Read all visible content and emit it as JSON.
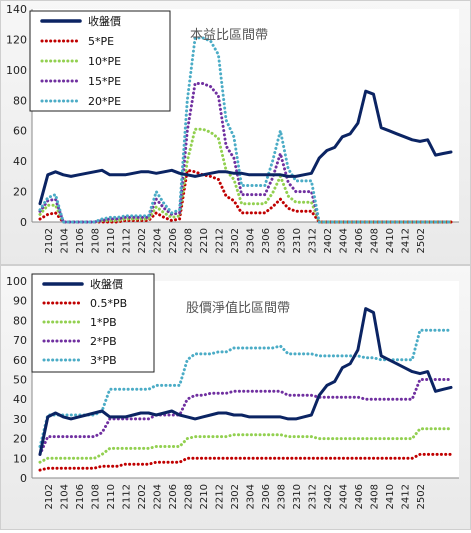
{
  "chart_data": [
    {
      "type": "line",
      "title": "本益比區間帶",
      "ylim": [
        0,
        140
      ],
      "yticks": [
        0,
        20,
        40,
        60,
        80,
        100,
        120,
        140
      ],
      "grid": false,
      "legend": "top-left",
      "x_ticks": [
        "2102",
        "2104",
        "2106",
        "2108",
        "2110",
        "2112",
        "2202",
        "2204",
        "2206",
        "2208",
        "2210",
        "2212",
        "2302",
        "2304",
        "2306",
        "2308",
        "2310",
        "2312",
        "2402",
        "2404",
        "2406",
        "2408",
        "2410",
        "2412",
        "2502"
      ],
      "series": [
        {
          "name": "收盤價",
          "color": "#0b2463",
          "style": "solid",
          "values": [
            12,
            31,
            33,
            31,
            30,
            31,
            32,
            33,
            34,
            31,
            31,
            31,
            32,
            33,
            33,
            32,
            33,
            34,
            32,
            31,
            30,
            31,
            32,
            33,
            33,
            32,
            32,
            31,
            31,
            31,
            31,
            31,
            30,
            30,
            31,
            32,
            42,
            47,
            49,
            56,
            58,
            65,
            86,
            84,
            62,
            60,
            58,
            56,
            54,
            53,
            54,
            44,
            45,
            46
          ]
        },
        {
          "name": "5*PE",
          "color": "#c00000",
          "style": "dot",
          "values": [
            2,
            5,
            6,
            0,
            0,
            0,
            0,
            0,
            0,
            0,
            0,
            1,
            1,
            1,
            1,
            6,
            3,
            1,
            2,
            34,
            33,
            31,
            30,
            28,
            17,
            14,
            6,
            6,
            6,
            6,
            10,
            15,
            9,
            7,
            7,
            7,
            0,
            0,
            0,
            0,
            0,
            0,
            0,
            0,
            0,
            0,
            0,
            0,
            0,
            0,
            0,
            0,
            0,
            0
          ]
        },
        {
          "name": "10*PE",
          "color": "#92d050",
          "style": "dot",
          "values": [
            5,
            11,
            11,
            0,
            0,
            0,
            0,
            0,
            1,
            1,
            1,
            2,
            2,
            2,
            2,
            10,
            6,
            3,
            4,
            40,
            61,
            61,
            59,
            55,
            34,
            28,
            12,
            12,
            12,
            12,
            19,
            30,
            17,
            13,
            13,
            13,
            0,
            0,
            0,
            0,
            0,
            0,
            0,
            0,
            0,
            0,
            0,
            0,
            0,
            0,
            0,
            0,
            0,
            0
          ]
        },
        {
          "name": "15*PE",
          "color": "#7030a0",
          "style": "dot",
          "values": [
            7,
            14,
            15,
            0,
            0,
            0,
            0,
            0,
            1,
            2,
            2,
            3,
            3,
            3,
            3,
            15,
            9,
            5,
            6,
            60,
            91,
            91,
            89,
            83,
            50,
            42,
            18,
            18,
            18,
            18,
            29,
            45,
            26,
            20,
            20,
            20,
            0,
            0,
            0,
            0,
            0,
            0,
            0,
            0,
            0,
            0,
            0,
            0,
            0,
            0,
            0,
            0,
            0,
            0
          ]
        },
        {
          "name": "20*PE",
          "color": "#4bacc6",
          "style": "dot",
          "values": [
            8,
            16,
            18,
            0,
            0,
            0,
            0,
            0,
            2,
            3,
            3,
            4,
            4,
            4,
            4,
            20,
            12,
            6,
            8,
            80,
            121,
            121,
            119,
            110,
            67,
            56,
            24,
            24,
            24,
            24,
            40,
            60,
            35,
            27,
            27,
            27,
            0,
            0,
            0,
            0,
            0,
            0,
            0,
            0,
            0,
            0,
            0,
            0,
            0,
            0,
            0,
            0,
            0,
            0
          ]
        }
      ]
    },
    {
      "type": "line",
      "title": "股價淨值比區間帶",
      "ylim": [
        0,
        100
      ],
      "yticks": [
        0,
        10,
        20,
        30,
        40,
        50,
        60,
        70,
        80,
        90,
        100
      ],
      "grid": false,
      "legend": "top-left",
      "x_ticks": [
        "2102",
        "2104",
        "2106",
        "2108",
        "2110",
        "2112",
        "2202",
        "2204",
        "2206",
        "2208",
        "2210",
        "2212",
        "2302",
        "2304",
        "2306",
        "2308",
        "2310",
        "2312",
        "2402",
        "2404",
        "2406",
        "2408",
        "2410",
        "2412",
        "2502"
      ],
      "series": [
        {
          "name": "收盤價",
          "color": "#0b2463",
          "style": "solid",
          "values": [
            12,
            31,
            33,
            31,
            30,
            31,
            32,
            33,
            34,
            31,
            31,
            31,
            32,
            33,
            33,
            32,
            33,
            34,
            32,
            31,
            30,
            31,
            32,
            33,
            33,
            32,
            32,
            31,
            31,
            31,
            31,
            31,
            30,
            30,
            31,
            32,
            42,
            47,
            49,
            56,
            58,
            65,
            86,
            84,
            62,
            60,
            58,
            56,
            54,
            53,
            54,
            44,
            45,
            46
          ]
        },
        {
          "name": "0.5*PB",
          "color": "#c00000",
          "style": "dot",
          "values": [
            4,
            5,
            5,
            5,
            5,
            5,
            5,
            5,
            6,
            6,
            6,
            7,
            7,
            7,
            7,
            8,
            8,
            8,
            8,
            10,
            10,
            10,
            10,
            10,
            10,
            10,
            10,
            10,
            10,
            10,
            10,
            10,
            10,
            10,
            10,
            10,
            10,
            10,
            10,
            10,
            10,
            10,
            10,
            10,
            10,
            10,
            10,
            10,
            10,
            12,
            12,
            12,
            12,
            12
          ]
        },
        {
          "name": "1*PB",
          "color": "#92d050",
          "style": "dot",
          "values": [
            8,
            10,
            10,
            10,
            10,
            10,
            10,
            10,
            12,
            15,
            15,
            15,
            15,
            15,
            15,
            16,
            16,
            16,
            16,
            20,
            21,
            21,
            21,
            21,
            21,
            22,
            22,
            22,
            22,
            22,
            22,
            22,
            21,
            21,
            21,
            21,
            20,
            20,
            20,
            20,
            20,
            20,
            20,
            20,
            20,
            20,
            20,
            20,
            20,
            25,
            25,
            25,
            25,
            25
          ]
        },
        {
          "name": "2*PB",
          "color": "#7030a0",
          "style": "dot",
          "values": [
            12,
            21,
            21,
            21,
            21,
            21,
            21,
            21,
            23,
            30,
            30,
            30,
            30,
            30,
            30,
            32,
            32,
            32,
            32,
            40,
            42,
            42,
            43,
            43,
            43,
            44,
            44,
            44,
            44,
            44,
            44,
            44,
            42,
            42,
            42,
            42,
            41,
            41,
            41,
            41,
            41,
            41,
            40,
            40,
            40,
            40,
            40,
            40,
            40,
            50,
            50,
            50,
            50,
            50
          ]
        },
        {
          "name": "3*PB",
          "color": "#4bacc6",
          "style": "dot",
          "values": [
            16,
            32,
            32,
            32,
            32,
            32,
            32,
            32,
            34,
            45,
            45,
            45,
            45,
            45,
            45,
            47,
            47,
            47,
            47,
            60,
            63,
            63,
            63,
            64,
            64,
            66,
            66,
            66,
            66,
            66,
            66,
            67,
            63,
            63,
            63,
            63,
            62,
            62,
            62,
            62,
            62,
            62,
            61,
            61,
            60,
            60,
            60,
            60,
            60,
            75,
            75,
            75,
            75,
            75
          ]
        }
      ]
    }
  ]
}
